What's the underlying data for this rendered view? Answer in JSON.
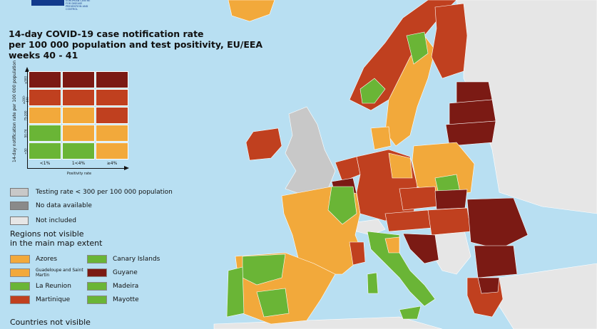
{
  "header": {
    "logo_text": "EUROPEAN CENTRE FOR DISEASE PREVENTION AND CONTROL"
  },
  "title": {
    "line1": "14-day COVID-19 case notification rate",
    "line2": "per 100 000 population and test positivity, EU/EEA",
    "line3": "weeks 40 - 41"
  },
  "matrix": {
    "ylabel": "14-day notification rate per 100 000 population",
    "xlabel": "Positivity rate",
    "rows": [
      "≥500",
      "≥200-499",
      "75-200",
      "50-74",
      "<50"
    ],
    "cols": [
      "<1%",
      "1<4%",
      "≥4%"
    ],
    "colors": [
      [
        "#7b1a14",
        "#7b1a14",
        "#7b1a14"
      ],
      [
        "#c0401f",
        "#c0401f",
        "#c0401f"
      ],
      [
        "#f2a93b",
        "#f2a93b",
        "#c0401f"
      ],
      [
        "#6ab536",
        "#f2a93b",
        "#f2a93b"
      ],
      [
        "#6ab536",
        "#6ab536",
        "#f2a93b"
      ]
    ]
  },
  "legend": {
    "testing": "Testing rate < 300 per 100 000 population",
    "no_data": "No data available",
    "not_included": "Not included",
    "testing_color": "#c8c8c8",
    "no_data_color": "#8a8a8a",
    "not_included_color": "#e6e6e6"
  },
  "regions": {
    "heading1": "Regions not visible",
    "heading2": "in the main map extent",
    "left": [
      {
        "label": "Azores",
        "color": "#f2a93b"
      },
      {
        "label": "Guadeloupe and Saint Martin",
        "color": "#f2a93b"
      },
      {
        "label": "La Reunion",
        "color": "#6ab536"
      },
      {
        "label": "Martinique",
        "color": "#c0401f"
      }
    ],
    "right": [
      {
        "label": "Canary Islands",
        "color": "#6ab536"
      },
      {
        "label": "Guyane",
        "color": "#7b1a14"
      },
      {
        "label": "Madeira",
        "color": "#6ab536"
      },
      {
        "label": "Mayotte",
        "color": "#6ab536"
      }
    ]
  },
  "countries_heading": "Countries not visible",
  "map_colors": {
    "sea": "#b8dff2",
    "not_included": "#e6e6e6",
    "testing": "#c8c8c8",
    "green": "#6ab536",
    "orange": "#f2a93b",
    "red": "#c0401f",
    "darkred": "#7b1a14"
  }
}
